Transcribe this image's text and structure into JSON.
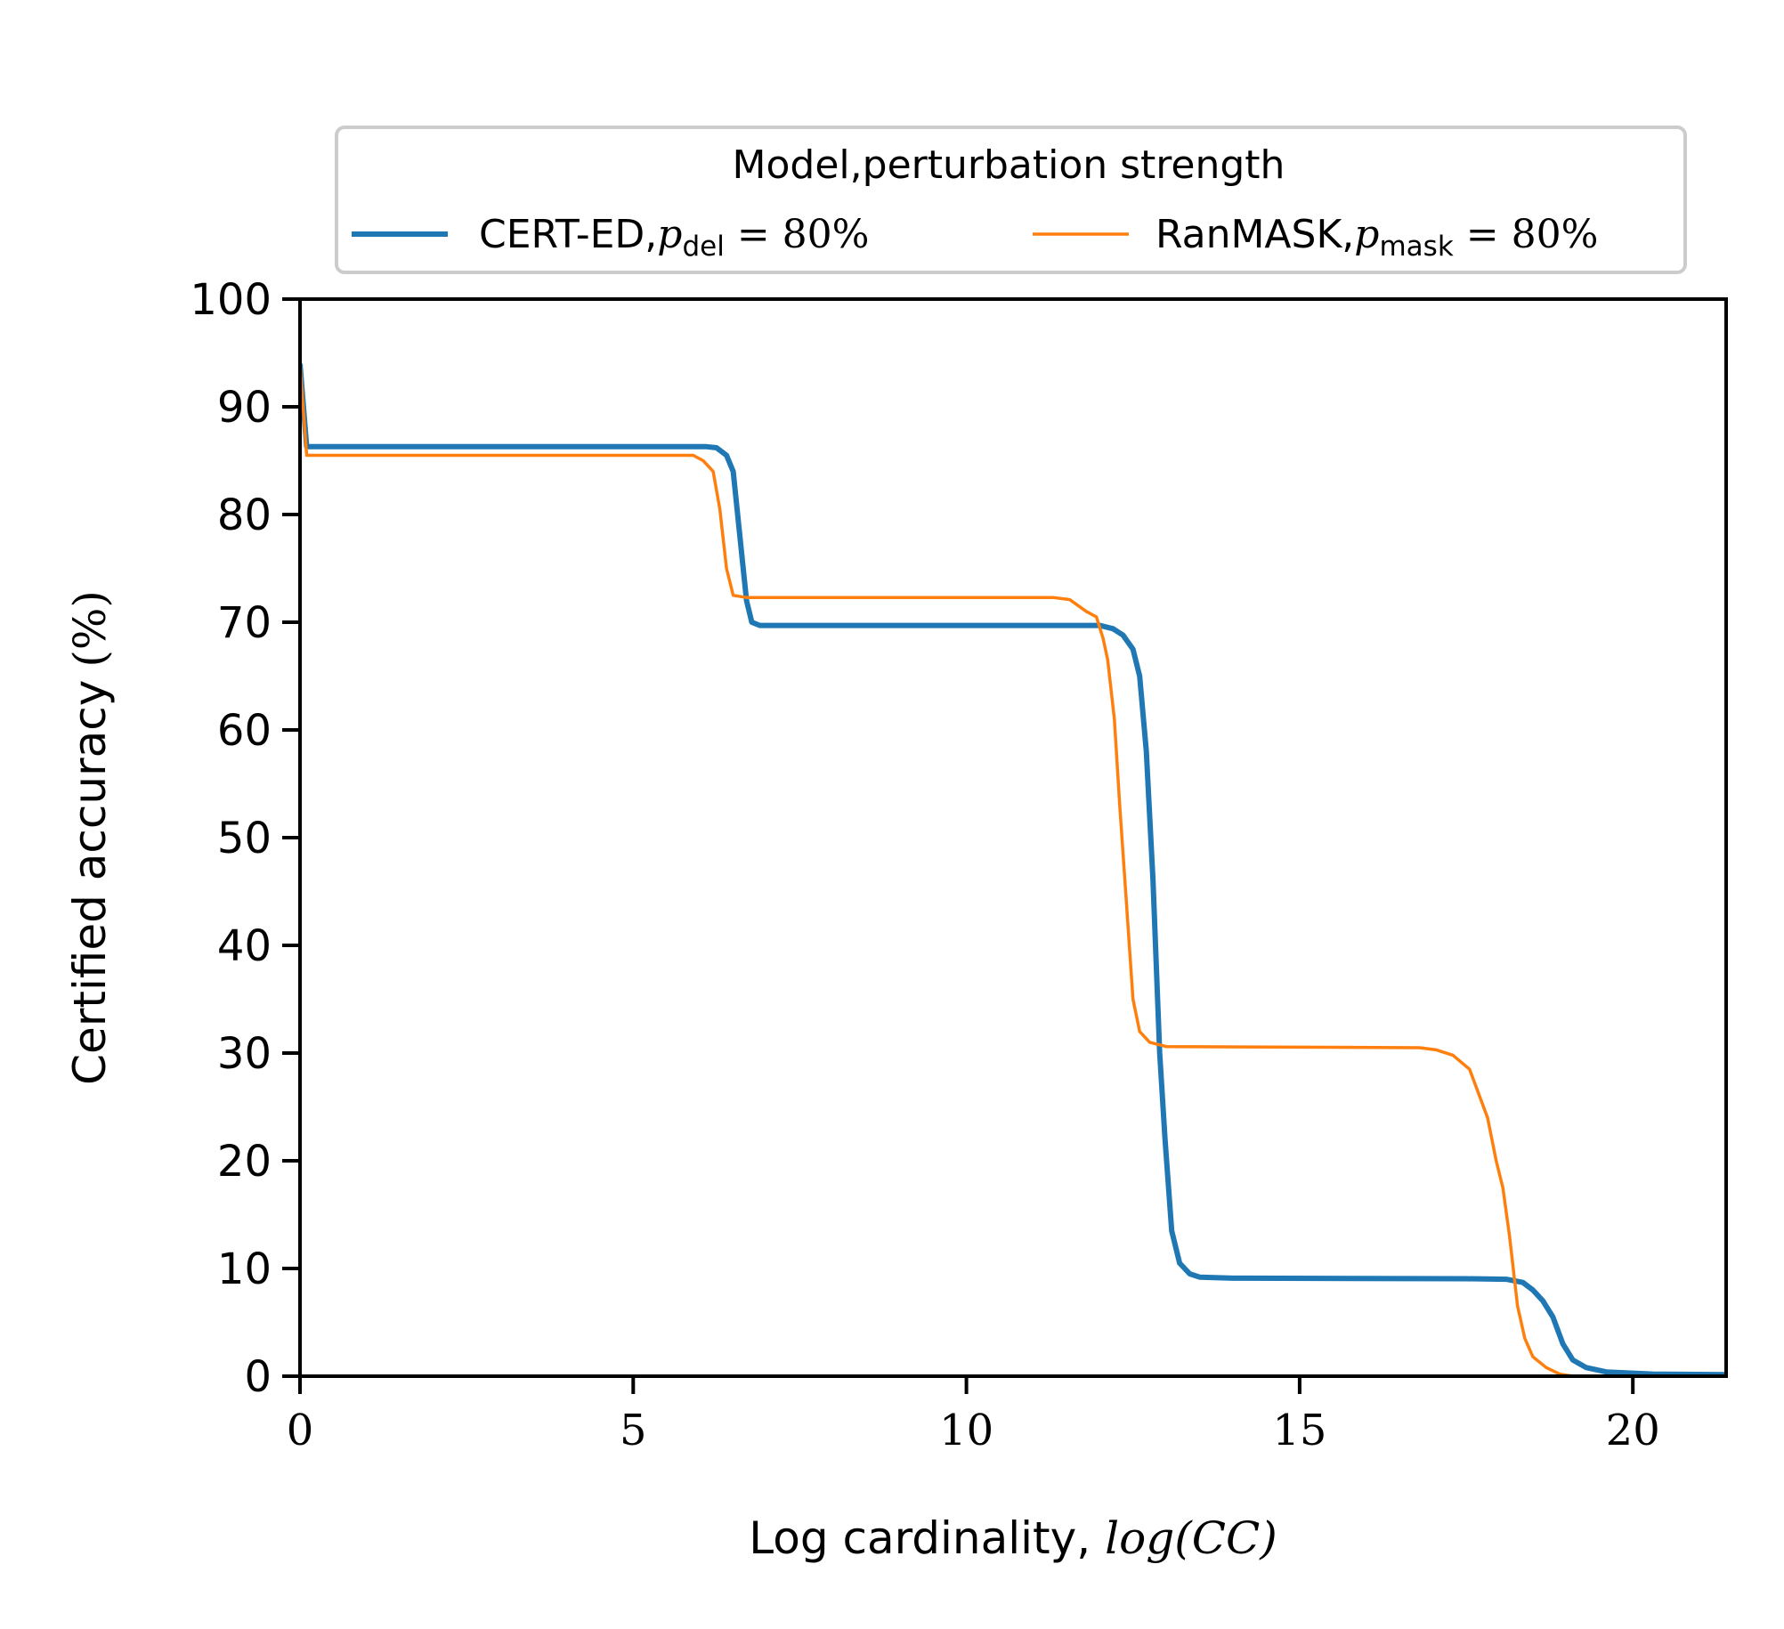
{
  "chart_data": {
    "type": "line",
    "title": "",
    "xlabel": "Log cardinality,",
    "xlabel_math": "log(CC)",
    "ylabel": "Certified accuracy",
    "ylabel_math": "(%)",
    "xlim": [
      0,
      21.4
    ],
    "ylim": [
      0,
      100
    ],
    "xticks": [
      0,
      5,
      10,
      15,
      20
    ],
    "yticks": [
      0,
      10,
      20,
      30,
      40,
      50,
      60,
      70,
      80,
      90,
      100
    ],
    "grid": false,
    "legend": {
      "title": "Model,perturbation strength",
      "placement": "top-center, above plot",
      "entries": [
        {
          "name": "CERT-ED,",
          "symbol": "p",
          "subscript": "del",
          "equation": "= 80%"
        },
        {
          "name": "RanMASK,",
          "symbol": "p",
          "subscript": "mask",
          "equation": "= 80%"
        }
      ]
    },
    "series": [
      {
        "name": "CERT-ED, p_del = 80%",
        "color": "#1f77b4",
        "points": [
          [
            0,
            94
          ],
          [
            0.1,
            86.3
          ],
          [
            6.1,
            86.3
          ],
          [
            6.25,
            86.2
          ],
          [
            6.4,
            85.5
          ],
          [
            6.5,
            84
          ],
          [
            6.6,
            78
          ],
          [
            6.7,
            72
          ],
          [
            6.78,
            70
          ],
          [
            6.9,
            69.7
          ],
          [
            12,
            69.7
          ],
          [
            12.2,
            69.4
          ],
          [
            12.35,
            68.8
          ],
          [
            12.5,
            67.5
          ],
          [
            12.6,
            65
          ],
          [
            12.7,
            58
          ],
          [
            12.8,
            46
          ],
          [
            12.9,
            30
          ],
          [
            12.98,
            22
          ],
          [
            13.08,
            13.5
          ],
          [
            13.2,
            10.5
          ],
          [
            13.35,
            9.5
          ],
          [
            13.5,
            9.2
          ],
          [
            14,
            9.1
          ],
          [
            17.5,
            9.05
          ],
          [
            18.1,
            9
          ],
          [
            18.35,
            8.7
          ],
          [
            18.5,
            8
          ],
          [
            18.65,
            7
          ],
          [
            18.8,
            5.5
          ],
          [
            18.95,
            3
          ],
          [
            19.1,
            1.5
          ],
          [
            19.3,
            0.8
          ],
          [
            19.6,
            0.4
          ],
          [
            20.3,
            0.2
          ],
          [
            21.4,
            0.15
          ]
        ]
      },
      {
        "name": "RanMASK, p_mask = 80%",
        "color": "#ff7f0e",
        "points": [
          [
            0,
            94
          ],
          [
            0.1,
            85.5
          ],
          [
            5.9,
            85.5
          ],
          [
            6.05,
            85
          ],
          [
            6.2,
            84
          ],
          [
            6.3,
            80.5
          ],
          [
            6.4,
            75
          ],
          [
            6.5,
            72.5
          ],
          [
            6.7,
            72.3
          ],
          [
            11.3,
            72.3
          ],
          [
            11.55,
            72.1
          ],
          [
            11.8,
            71
          ],
          [
            11.95,
            70.5
          ],
          [
            12.05,
            68.5
          ],
          [
            12.12,
            66.5
          ],
          [
            12.22,
            61
          ],
          [
            12.3,
            53
          ],
          [
            12.4,
            44
          ],
          [
            12.5,
            35
          ],
          [
            12.6,
            32
          ],
          [
            12.75,
            31
          ],
          [
            13,
            30.6
          ],
          [
            16.8,
            30.5
          ],
          [
            17.05,
            30.3
          ],
          [
            17.3,
            29.8
          ],
          [
            17.55,
            28.5
          ],
          [
            17.7,
            26
          ],
          [
            17.82,
            24
          ],
          [
            17.95,
            20
          ],
          [
            18.05,
            17.5
          ],
          [
            18.15,
            13
          ],
          [
            18.27,
            6.5
          ],
          [
            18.38,
            3.5
          ],
          [
            18.5,
            1.8
          ],
          [
            18.7,
            0.8
          ],
          [
            18.9,
            0.2
          ],
          [
            19.1,
            0
          ],
          [
            21.4,
            0
          ]
        ]
      }
    ]
  }
}
